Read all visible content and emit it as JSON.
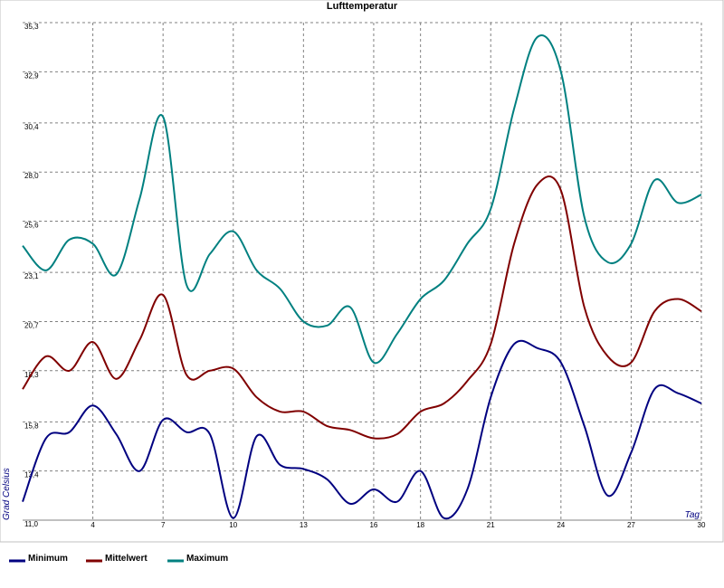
{
  "chart_data": {
    "type": "line",
    "title": "Lufttemperatur",
    "x_label": "Tag",
    "y_label": "Grad Celsius",
    "x": [
      1,
      2,
      3,
      4,
      5,
      6,
      7,
      8,
      9,
      10,
      11,
      12,
      13,
      14,
      15,
      16,
      17,
      18,
      19,
      20,
      21,
      22,
      23,
      24,
      25,
      26,
      27,
      28,
      29,
      30
    ],
    "series": [
      {
        "name": "Minimum",
        "color": "#000080",
        "values": [
          11.9,
          15.0,
          15.3,
          16.6,
          15.2,
          13.4,
          15.9,
          15.3,
          15.2,
          11.1,
          15.1,
          13.7,
          13.5,
          13.0,
          11.8,
          12.5,
          11.9,
          13.4,
          11.1,
          12.5,
          17.0,
          19.6,
          19.4,
          18.7,
          15.6,
          12.2,
          14.3,
          17.4,
          17.2,
          16.7
        ]
      },
      {
        "name": "Mittelwert",
        "color": "#800000",
        "values": [
          17.4,
          19.0,
          18.3,
          19.7,
          17.9,
          19.8,
          22.0,
          18.1,
          18.3,
          18.4,
          17.0,
          16.3,
          16.3,
          15.6,
          15.4,
          15.0,
          15.2,
          16.3,
          16.7,
          17.8,
          19.6,
          24.5,
          27.4,
          27.1,
          21.4,
          19.0,
          18.7,
          21.2,
          21.8,
          21.2
        ]
      },
      {
        "name": "Maximum",
        "color": "#008080",
        "values": [
          24.4,
          23.2,
          24.7,
          24.5,
          23.0,
          26.7,
          30.7,
          22.5,
          24.0,
          25.1,
          23.2,
          22.3,
          20.7,
          20.5,
          21.4,
          18.7,
          20.1,
          21.8,
          22.7,
          24.5,
          26.2,
          31.1,
          34.6,
          32.9,
          25.8,
          23.6,
          24.5,
          27.6,
          26.5,
          26.9
        ]
      }
    ],
    "xlim": [
      1,
      30
    ],
    "xticks": [
      4,
      7,
      10,
      13,
      16,
      18,
      21,
      24,
      27,
      30
    ],
    "ylim": [
      11.0,
      35.3
    ],
    "yticks": [
      {
        "value": 11.0,
        "label": "11,0"
      },
      {
        "value": 13.4,
        "label": "13,4"
      },
      {
        "value": 15.8,
        "label": "15,8"
      },
      {
        "value": 18.3,
        "label": "18,3"
      },
      {
        "value": 20.7,
        "label": "20,7"
      },
      {
        "value": 23.1,
        "label": "23,1"
      },
      {
        "value": 25.6,
        "label": "25,6"
      },
      {
        "value": 28.0,
        "label": "28,0"
      },
      {
        "value": 30.4,
        "label": "30,4"
      },
      {
        "value": 32.9,
        "label": "32,9"
      },
      {
        "value": 35.3,
        "label": "35,3"
      }
    ],
    "grid": true
  }
}
